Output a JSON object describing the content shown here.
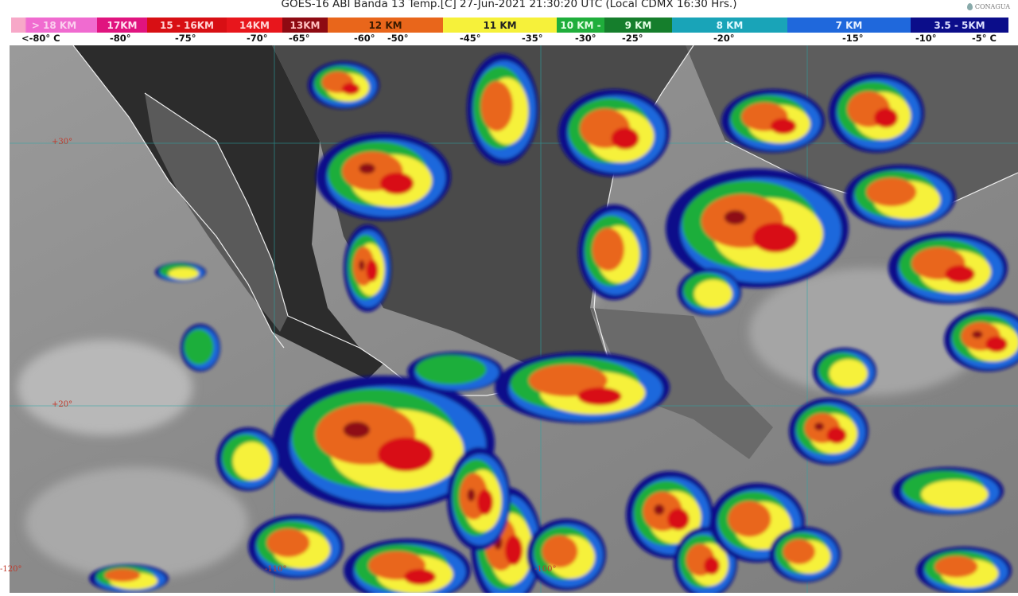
{
  "header": {
    "title": "GOES-16 ABI Banda 13 Temp.[C] 27-Jun-2021 21:30:20 UTC (Local CDMX  16:30 Hrs.)",
    "logo_text": "CONAGUA"
  },
  "legend": {
    "segments": [
      {
        "label": "> 18 KM",
        "color": "#f06bd0",
        "text_color": "#fbd0ee"
      },
      {
        "label": "17KM",
        "color": "#e0147f",
        "text_color": "#ffe0f0"
      },
      {
        "label": "15 - 16KM",
        "color": "#d80f14",
        "text_color": "#ffd6d6"
      },
      {
        "label": "14KM",
        "color": "#e8161c",
        "text_color": "#ffd6d6"
      },
      {
        "label": "13KM",
        "color": "#8e0a12",
        "text_color": "#ffc0c0"
      },
      {
        "label": "12 KM",
        "color": "#e9661b",
        "text_color": "#3a1a00"
      },
      {
        "label": "11 KM",
        "color": "#f6f13a",
        "text_color": "#222"
      },
      {
        "label": "10 KM -",
        "color": "#1fae3b",
        "text_color": "#e5ffe5"
      },
      {
        "label": "9 KM",
        "color": "#157e2c",
        "text_color": "#e5ffe5"
      },
      {
        "label": "8 KM",
        "color": "#19a4b8",
        "text_color": "#e0faff"
      },
      {
        "label": "7 KM",
        "color": "#1f68dc",
        "text_color": "#e6f0ff"
      },
      {
        "label": "3.5 - 5KM",
        "color": "#0b0d8a",
        "text_color": "#dde0ff"
      }
    ],
    "temperatures": [
      "<-80° C",
      "-80°",
      "-75°",
      "-70°",
      "-65°",
      "-60°",
      "-50°",
      "-45°",
      "-35°",
      "-30°",
      "-25°",
      "-20°",
      "-15°",
      "-10°",
      "-5° C"
    ]
  },
  "map": {
    "latitude_labels": [
      "+30°",
      "+20°"
    ],
    "longitude_labels": [
      "-120°",
      "-110°",
      "-100°"
    ]
  }
}
